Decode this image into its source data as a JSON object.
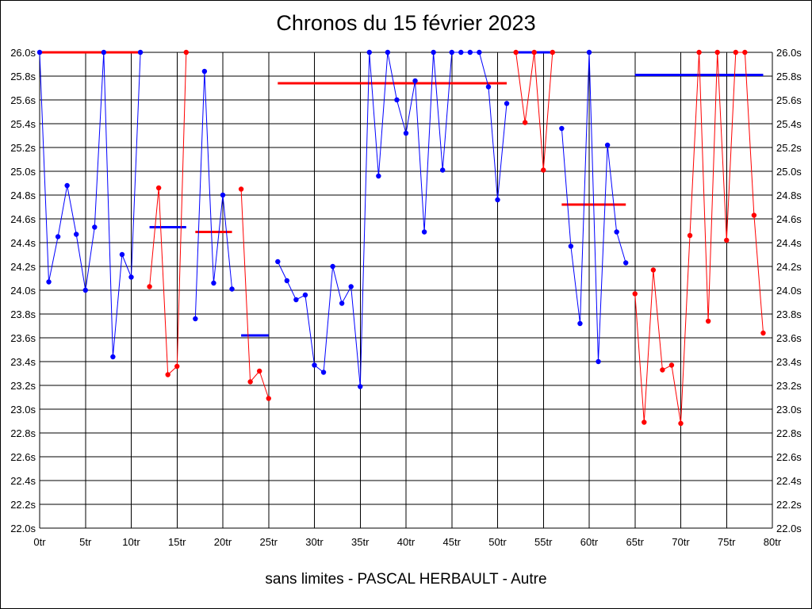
{
  "chart_data": {
    "type": "line",
    "title": "Chronos du 15 février 2023",
    "subtitle": "sans limites - PASCAL HERBAULT - Autre",
    "x_ticks": [
      "0tr",
      "5tr",
      "10tr",
      "15tr",
      "20tr",
      "25tr",
      "30tr",
      "35tr",
      "40tr",
      "45tr",
      "50tr",
      "55tr",
      "60tr",
      "65tr",
      "70tr",
      "75tr",
      "80tr"
    ],
    "y_ticks": [
      "22.0s",
      "22.2s",
      "22.4s",
      "22.6s",
      "22.8s",
      "23.0s",
      "23.2s",
      "23.4s",
      "23.6s",
      "23.8s",
      "24.0s",
      "24.2s",
      "24.4s",
      "24.6s",
      "24.8s",
      "25.0s",
      "25.2s",
      "25.4s",
      "25.6s",
      "25.8s",
      "26.0s"
    ],
    "xlim": [
      0,
      80
    ],
    "ylim": [
      22.0,
      26.0
    ],
    "grid": true,
    "colors": {
      "blue": "#0000ff",
      "red": "#ff0000"
    },
    "series": [
      {
        "color": "blue",
        "points": [
          [
            0,
            26.0
          ],
          [
            1,
            24.07
          ],
          [
            2,
            24.45
          ],
          [
            3,
            24.88
          ],
          [
            4,
            24.47
          ],
          [
            5,
            24.0
          ],
          [
            6,
            24.53
          ],
          [
            7,
            26.0
          ],
          [
            8,
            23.44
          ],
          [
            9,
            24.3
          ],
          [
            10,
            24.11
          ],
          [
            11,
            26.0
          ]
        ]
      },
      {
        "color": "red",
        "points": [
          [
            12,
            24.03
          ],
          [
            13,
            24.86
          ],
          [
            14,
            23.29
          ],
          [
            15,
            23.36
          ],
          [
            16,
            26.0
          ]
        ]
      },
      {
        "color": "blue",
        "points": [
          [
            17,
            23.76
          ],
          [
            18,
            25.84
          ],
          [
            19,
            24.06
          ],
          [
            20,
            24.8
          ],
          [
            21,
            24.01
          ]
        ]
      },
      {
        "color": "red",
        "points": [
          [
            22,
            24.85
          ],
          [
            23,
            23.23
          ],
          [
            24,
            23.32
          ],
          [
            25,
            23.09
          ]
        ]
      },
      {
        "color": "blue",
        "points": [
          [
            26,
            24.24
          ],
          [
            27,
            24.08
          ],
          [
            28,
            23.92
          ],
          [
            29,
            23.96
          ],
          [
            30,
            23.37
          ],
          [
            31,
            23.31
          ],
          [
            32,
            24.2
          ],
          [
            33,
            23.89
          ],
          [
            34,
            24.03
          ],
          [
            35,
            23.19
          ],
          [
            36,
            26.0
          ],
          [
            37,
            24.96
          ],
          [
            38,
            26.0
          ],
          [
            39,
            25.6
          ],
          [
            40,
            25.32
          ],
          [
            41,
            25.76
          ],
          [
            42,
            24.49
          ],
          [
            43,
            26.0
          ],
          [
            44,
            25.01
          ],
          [
            45,
            26.0
          ],
          [
            46,
            26.0
          ],
          [
            47,
            26.0
          ],
          [
            48,
            26.0
          ],
          [
            49,
            25.71
          ],
          [
            50,
            24.76
          ],
          [
            51,
            25.57
          ]
        ]
      },
      {
        "color": "red",
        "points": [
          [
            52,
            26.0
          ],
          [
            53,
            25.41
          ],
          [
            54,
            26.0
          ],
          [
            55,
            25.01
          ],
          [
            56,
            26.0
          ]
        ]
      },
      {
        "color": "blue",
        "points": [
          [
            57,
            25.36
          ],
          [
            58,
            24.37
          ],
          [
            59,
            23.72
          ],
          [
            60,
            26.0
          ],
          [
            61,
            23.4
          ],
          [
            62,
            25.22
          ],
          [
            63,
            24.49
          ],
          [
            64,
            24.23
          ]
        ]
      },
      {
        "color": "red",
        "points": [
          [
            65,
            23.97
          ],
          [
            66,
            22.89
          ],
          [
            67,
            24.17
          ],
          [
            68,
            23.33
          ],
          [
            69,
            23.37
          ],
          [
            70,
            22.88
          ],
          [
            71,
            24.46
          ],
          [
            72,
            26.0
          ],
          [
            73,
            23.74
          ],
          [
            74,
            26.0
          ],
          [
            75,
            24.42
          ],
          [
            76,
            26.0
          ],
          [
            77,
            26.0
          ],
          [
            78,
            24.63
          ],
          [
            79,
            23.64
          ]
        ]
      }
    ],
    "averages": [
      {
        "color": "red",
        "x": [
          0,
          11
        ],
        "y": 26.0
      },
      {
        "color": "blue",
        "x": [
          12,
          16
        ],
        "y": 24.53
      },
      {
        "color": "red",
        "x": [
          17,
          21
        ],
        "y": 24.49
      },
      {
        "color": "blue",
        "x": [
          22,
          25
        ],
        "y": 23.62
      },
      {
        "color": "red",
        "x": [
          26,
          51
        ],
        "y": 25.74
      },
      {
        "color": "blue",
        "x": [
          52,
          56
        ],
        "y": 26.0
      },
      {
        "color": "red",
        "x": [
          57,
          64
        ],
        "y": 24.72
      },
      {
        "color": "blue",
        "x": [
          65,
          79
        ],
        "y": 25.81
      }
    ]
  }
}
